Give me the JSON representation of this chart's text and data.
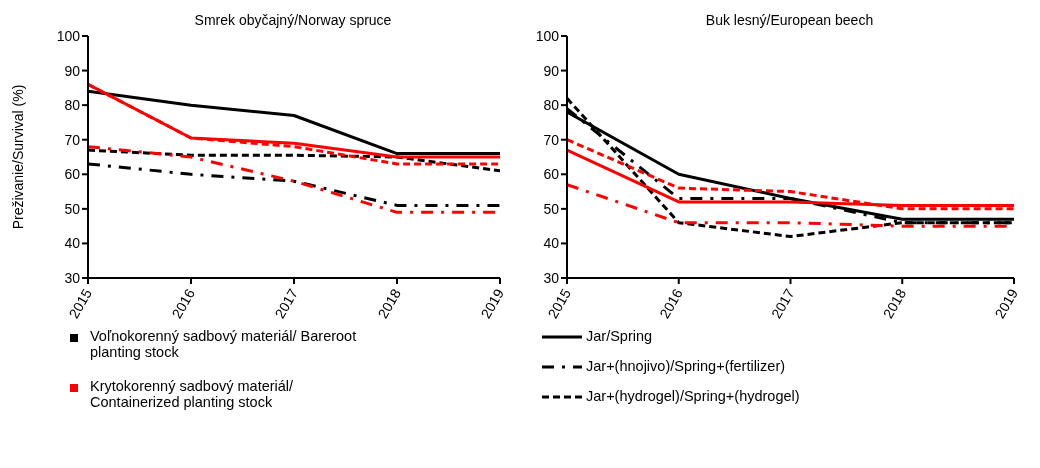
{
  "chart_data": [
    {
      "type": "line",
      "title": "Smrek obyčajný/Norway spruce",
      "ylabel": "Preživanie/Survival  (%)",
      "categories": [
        "2015",
        "2016",
        "2017",
        "2018",
        "2019"
      ],
      "ylim": [
        30,
        100
      ],
      "yticks": [
        30,
        40,
        50,
        60,
        70,
        80,
        90,
        100
      ],
      "grid": false,
      "series": [
        {
          "color": "#000000",
          "line_style": "solid",
          "values": [
            84,
            80,
            77,
            66,
            66
          ]
        },
        {
          "color": "#000000",
          "line_style": "dotted",
          "values": [
            63,
            60,
            58,
            51,
            51
          ]
        },
        {
          "color": "#000000",
          "line_style": "dashed",
          "values": [
            67,
            65.5,
            65.5,
            65,
            61
          ]
        },
        {
          "color": "#ff0000",
          "line_style": "solid",
          "values": [
            86,
            70.5,
            69,
            65,
            65
          ]
        },
        {
          "color": "#ff0000",
          "line_style": "dotted",
          "values": [
            68,
            65,
            58,
            49,
            49
          ]
        },
        {
          "color": "#ff0000",
          "line_style": "dashed",
          "values": [
            86,
            70.5,
            68,
            63,
            63
          ]
        }
      ],
      "annotations": [
        "Voľnokorenný sadbový materiál/ Bareroot planting stock",
        "Krytokorenný sadbový materiál/ Containerized planting stock"
      ]
    },
    {
      "type": "line",
      "title": "Buk lesný/European beech",
      "categories": [
        "2015",
        "2016",
        "2017",
        "2018",
        "2019"
      ],
      "ylim": [
        30,
        100
      ],
      "yticks": [
        30,
        40,
        50,
        60,
        70,
        80,
        90,
        100
      ],
      "grid": false,
      "series": [
        {
          "color": "#000000",
          "line_style": "solid",
          "values": [
            78,
            60,
            53,
            47,
            47
          ]
        },
        {
          "color": "#000000",
          "line_style": "dotted",
          "values": [
            79,
            53,
            53,
            46,
            46
          ]
        },
        {
          "color": "#000000",
          "line_style": "dashed",
          "values": [
            82,
            46,
            42,
            46,
            46
          ]
        },
        {
          "color": "#ff0000",
          "line_style": "solid",
          "values": [
            67,
            52,
            52,
            51,
            51
          ]
        },
        {
          "color": "#ff0000",
          "line_style": "dotted",
          "values": [
            57,
            46,
            46,
            45,
            45
          ]
        },
        {
          "color": "#ff0000",
          "line_style": "dashed",
          "values": [
            70,
            56,
            55,
            50,
            50
          ]
        }
      ],
      "annotations": [
        "Jar/Spring",
        "Jar+(hnojivo)/Spring+(fertilizer)",
        "Jar+(hydrogel)/Spring+(hydrogel)"
      ]
    }
  ]
}
